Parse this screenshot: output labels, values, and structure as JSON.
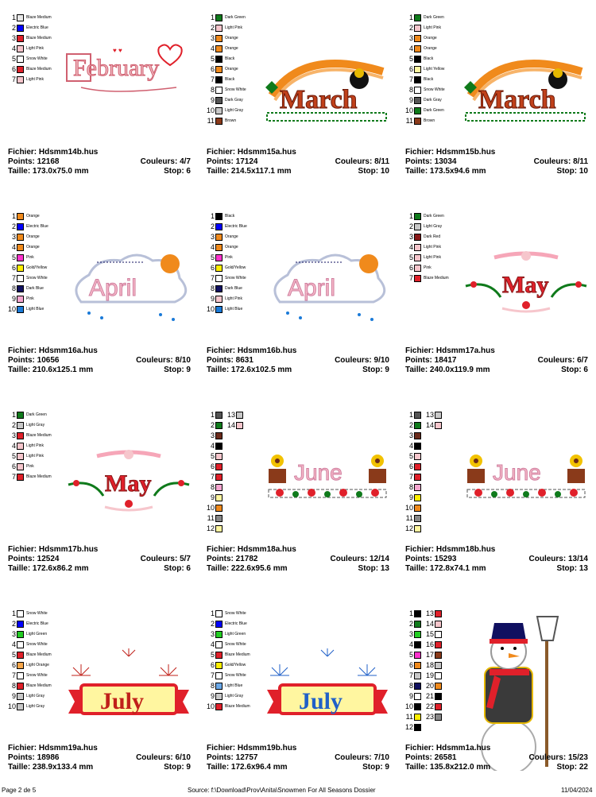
{
  "cells": [
    {
      "file": "Fichier: Hdsmm14b.hus",
      "points": "Points: 12168",
      "couleurs": "Couleurs: 4/7",
      "taille": "Taille: 173.0x75.0 mm",
      "stop": "Stop: 6",
      "title": "February",
      "layout": "single",
      "colors": [
        [
          "1",
          "#e8e8e8",
          "Blaze Medium"
        ],
        [
          "2",
          "#0000ff",
          "Electric Blue"
        ],
        [
          "3",
          "#e0202a",
          "Blaze Medium"
        ],
        [
          "4",
          "#f6c6cc",
          "Light Pink"
        ],
        [
          "5",
          "#ffffff",
          "Snow White"
        ],
        [
          "6",
          "#e0202a",
          "Blaze Medium"
        ],
        [
          "7",
          "#f6c6cc",
          "Light Pink"
        ]
      ]
    },
    {
      "file": "Fichier: Hdsmm15a.hus",
      "points": "Points: 17124",
      "couleurs": "Couleurs: 8/11",
      "taille": "Taille: 214.5x117.1 mm",
      "stop": "Stop: 10",
      "title": "March",
      "layout": "single",
      "colors": [
        [
          "1",
          "#0f7a1b",
          "Dark Green"
        ],
        [
          "2",
          "#f6c6cc",
          "Light Pink"
        ],
        [
          "3",
          "#f08a1c",
          "Orange"
        ],
        [
          "4",
          "#f08a1c",
          "Orange"
        ],
        [
          "5",
          "#000000",
          "Black"
        ],
        [
          "6",
          "#f08a1c",
          "Orange"
        ],
        [
          "7",
          "#000000",
          "Black"
        ],
        [
          "8",
          "#ffffff",
          "Snow White"
        ],
        [
          "9",
          "#555555",
          "Dark Gray"
        ],
        [
          "10",
          "#c8c8c8",
          "Light Gray"
        ],
        [
          "11",
          "#8a3a1a",
          "Brown"
        ]
      ]
    },
    {
      "file": "Fichier: Hdsmm15b.hus",
      "points": "Points: 13034",
      "couleurs": "Couleurs: 8/11",
      "taille": "Taille: 173.5x94.6 mm",
      "stop": "Stop: 10",
      "title": "March",
      "layout": "single",
      "colors": [
        [
          "1",
          "#0f7a1b",
          "Dark Green"
        ],
        [
          "2",
          "#f6c6cc",
          "Light Pink"
        ],
        [
          "3",
          "#f08a1c",
          "Orange"
        ],
        [
          "4",
          "#f08a1c",
          "Orange"
        ],
        [
          "5",
          "#000000",
          "Black"
        ],
        [
          "6",
          "#fff6a0",
          "Light Yellow"
        ],
        [
          "7",
          "#000000",
          "Black"
        ],
        [
          "8",
          "#ffffff",
          "Snow White"
        ],
        [
          "9",
          "#555555",
          "Dark Gray"
        ],
        [
          "10",
          "#0f7a1b",
          "Dark Green"
        ],
        [
          "11",
          "#8a3a1a",
          "Brown"
        ]
      ]
    },
    {
      "file": "Fichier: Hdsmm16a.hus",
      "points": "Points: 10656",
      "couleurs": "Couleurs: 8/10",
      "taille": "Taille: 210.6x125.1 mm",
      "stop": "Stop: 9",
      "title": "April",
      "layout": "single",
      "colors": [
        [
          "1",
          "#f08a1c",
          "Orange"
        ],
        [
          "2",
          "#0000ff",
          "Electric Blue"
        ],
        [
          "3",
          "#f08a1c",
          "Orange"
        ],
        [
          "4",
          "#f08a1c",
          "Orange"
        ],
        [
          "5",
          "#ff33cc",
          "Pink"
        ],
        [
          "6",
          "#ffee00",
          "Gold/Yellow"
        ],
        [
          "7",
          "#ffffff",
          "Snow White"
        ],
        [
          "8",
          "#101060",
          "Dark Blue"
        ],
        [
          "9",
          "#f6a6d0",
          "Pink"
        ],
        [
          "10",
          "#1a7ad8",
          "Light Blue"
        ]
      ]
    },
    {
      "file": "Fichier: Hdsmm16b.hus",
      "points": "Points: 8631",
      "couleurs": "Couleurs: 9/10",
      "taille": "Taille: 172.6x102.5 mm",
      "stop": "Stop: 9",
      "title": "April",
      "layout": "single",
      "colors": [
        [
          "1",
          "#000000",
          "Black"
        ],
        [
          "2",
          "#0000ff",
          "Electric Blue"
        ],
        [
          "3",
          "#f08a1c",
          "Orange"
        ],
        [
          "4",
          "#f08a1c",
          "Orange"
        ],
        [
          "5",
          "#ff33cc",
          "Pink"
        ],
        [
          "6",
          "#ffee00",
          "Gold/Yellow"
        ],
        [
          "7",
          "#ffffff",
          "Snow White"
        ],
        [
          "8",
          "#101060",
          "Dark Blue"
        ],
        [
          "9",
          "#f6c6cc",
          "Light Pink"
        ],
        [
          "10",
          "#1a7ad8",
          "Light Blue"
        ]
      ]
    },
    {
      "file": "Fichier: Hdsmm17a.hus",
      "points": "Points: 18417",
      "couleurs": "Couleurs: 6/7",
      "taille": "Taille: 240.0x119.9 mm",
      "stop": "Stop: 6",
      "title": "May",
      "layout": "single",
      "colors": [
        [
          "1",
          "#0f7a1b",
          "Dark Green"
        ],
        [
          "2",
          "#c8c8c8",
          "Light Gray"
        ],
        [
          "3",
          "#8a1a1a",
          "Dark Red"
        ],
        [
          "4",
          "#f6c6cc",
          "Light Pink"
        ],
        [
          "5",
          "#f6c6cc",
          "Light Pink"
        ],
        [
          "6",
          "#f6c6cc",
          "Pink"
        ],
        [
          "7",
          "#e0202a",
          "Blaze Medium"
        ]
      ]
    },
    {
      "file": "Fichier: Hdsmm17b.hus",
      "points": "Points: 12524",
      "couleurs": "Couleurs: 5/7",
      "taille": "Taille: 172.6x86.2 mm",
      "stop": "Stop: 6",
      "title": "May",
      "layout": "single",
      "colors": [
        [
          "1",
          "#0f7a1b",
          "Dark Green"
        ],
        [
          "2",
          "#c8c8c8",
          "Light Gray"
        ],
        [
          "3",
          "#e0202a",
          "Blaze Medium"
        ],
        [
          "4",
          "#f6c6cc",
          "Light Pink"
        ],
        [
          "5",
          "#f6c6cc",
          "Light Pink"
        ],
        [
          "6",
          "#f6c6cc",
          "Pink"
        ],
        [
          "7",
          "#e0202a",
          "Blaze Medium"
        ]
      ]
    },
    {
      "file": "Fichier: Hdsmm18a.hus",
      "points": "Points: 21782",
      "couleurs": "Couleurs: 12/14",
      "taille": "Taille: 222.6x95.6 mm",
      "stop": "Stop: 13",
      "title": "June",
      "layout": "numbers",
      "colA": [
        [
          "1",
          "#555555"
        ],
        [
          "2",
          "#0f7a1b"
        ],
        [
          "3",
          "#6a2a1a"
        ],
        [
          "4",
          "#000000"
        ],
        [
          "5",
          "#f6c6cc"
        ],
        [
          "6",
          "#e0202a"
        ],
        [
          "7",
          "#e0202a"
        ],
        [
          "8",
          "#f6a6d0"
        ],
        [
          "9",
          "#fff6a0"
        ],
        [
          "10",
          "#f08a1c"
        ],
        [
          "11",
          "#888888"
        ],
        [
          "12",
          "#fff6a0"
        ]
      ],
      "colB": [
        [
          "13",
          "#c8c8c8"
        ],
        [
          "14",
          "#f6c6cc"
        ]
      ]
    },
    {
      "file": "Fichier: Hdsmm18b.hus",
      "points": "Points: 15293",
      "couleurs": "Couleurs: 13/14",
      "taille": "Taille: 172.8x74.1 mm",
      "stop": "Stop: 13",
      "title": "June",
      "layout": "numbers",
      "colA": [
        [
          "1",
          "#555555"
        ],
        [
          "2",
          "#0f7a1b"
        ],
        [
          "3",
          "#6a2a1a"
        ],
        [
          "4",
          "#000000"
        ],
        [
          "5",
          "#f6c6cc"
        ],
        [
          "6",
          "#e0202a"
        ],
        [
          "7",
          "#e0202a"
        ],
        [
          "8",
          "#f6a6d0"
        ],
        [
          "9",
          "#ffee00"
        ],
        [
          "10",
          "#f08a1c"
        ],
        [
          "11",
          "#888888"
        ],
        [
          "12",
          "#fff6a0"
        ]
      ],
      "colB": [
        [
          "13",
          "#c8c8c8"
        ],
        [
          "14",
          "#f6c6cc"
        ]
      ]
    },
    {
      "file": "Fichier: Hdsmm19a.hus",
      "points": "Points: 18986",
      "couleurs": "Couleurs: 6/10",
      "taille": "Taille: 238.9x133.4 mm",
      "stop": "Stop: 9",
      "title": "July",
      "layout": "single",
      "colors": [
        [
          "1",
          "#ffffff",
          "Snow White"
        ],
        [
          "2",
          "#0000ff",
          "Electric Blue"
        ],
        [
          "3",
          "#22cc22",
          "Light Green"
        ],
        [
          "4",
          "#ffffff",
          "Snow White"
        ],
        [
          "5",
          "#e0202a",
          "Blaze Medium"
        ],
        [
          "6",
          "#f7a64a",
          "Light Orange"
        ],
        [
          "7",
          "#ffffff",
          "Snow White"
        ],
        [
          "8",
          "#e0202a",
          "Blaze Medium"
        ],
        [
          "9",
          "#c8c8c8",
          "Light Gray"
        ],
        [
          "10",
          "#c8c8c8",
          "Light Gray"
        ]
      ]
    },
    {
      "file": "Fichier: Hdsmm19b.hus",
      "points": "Points: 12757",
      "couleurs": "Couleurs: 7/10",
      "taille": "Taille: 172.6x96.4 mm",
      "stop": "Stop: 9",
      "title": "July",
      "layout": "single",
      "colors": [
        [
          "1",
          "#ffffff",
          "Snow White"
        ],
        [
          "2",
          "#0000ff",
          "Electric Blue"
        ],
        [
          "3",
          "#22cc22",
          "Light Green"
        ],
        [
          "4",
          "#ffffff",
          "Snow White"
        ],
        [
          "5",
          "#e0202a",
          "Blaze Medium"
        ],
        [
          "6",
          "#ffee00",
          "Gold/Yellow"
        ],
        [
          "7",
          "#ffffff",
          "Snow White"
        ],
        [
          "8",
          "#6aa8e8",
          "Light Blue"
        ],
        [
          "9",
          "#c8c8c8",
          "Light Gray"
        ],
        [
          "10",
          "#e0202a",
          "Blaze Medium"
        ]
      ]
    },
    {
      "file": "Fichier: Hdsmm1a.hus",
      "points": "Points: 26581",
      "couleurs": "Couleurs: 15/23",
      "taille": "Taille: 135.8x212.0 mm",
      "stop": "Stop: 22",
      "title": "",
      "layout": "numbers",
      "colA": [
        [
          "1",
          "#000000"
        ],
        [
          "2",
          "#0f7a1b"
        ],
        [
          "3",
          "#22cc22"
        ],
        [
          "4",
          "#000000"
        ],
        [
          "5",
          "#ff33cc"
        ],
        [
          "6",
          "#f08a1c"
        ],
        [
          "7",
          "#c8c8c8"
        ],
        [
          "8",
          "#101060"
        ],
        [
          "9",
          "#ffffff"
        ],
        [
          "10",
          "#000000"
        ],
        [
          "11",
          "#ffee00"
        ],
        [
          "12",
          "#000000"
        ]
      ],
      "colB": [
        [
          "13",
          "#e0202a"
        ],
        [
          "14",
          "#f6c6cc"
        ],
        [
          "15",
          "#ffffff"
        ],
        [
          "16",
          "#e0202a"
        ],
        [
          "17",
          "#8a3a1a"
        ],
        [
          "18",
          "#c8c8c8"
        ],
        [
          "19",
          "#ffffff"
        ],
        [
          "20",
          "#f08a1c"
        ],
        [
          "21",
          "#000000"
        ],
        [
          "22",
          "#e0202a"
        ],
        [
          "23",
          "#888888"
        ]
      ]
    }
  ],
  "footer": {
    "page": "Page 2 de 5",
    "source": "Source: f:\\Download\\Prov\\Anita\\Snowmen For All Seasons Dossier",
    "date": "11/04/2024"
  }
}
